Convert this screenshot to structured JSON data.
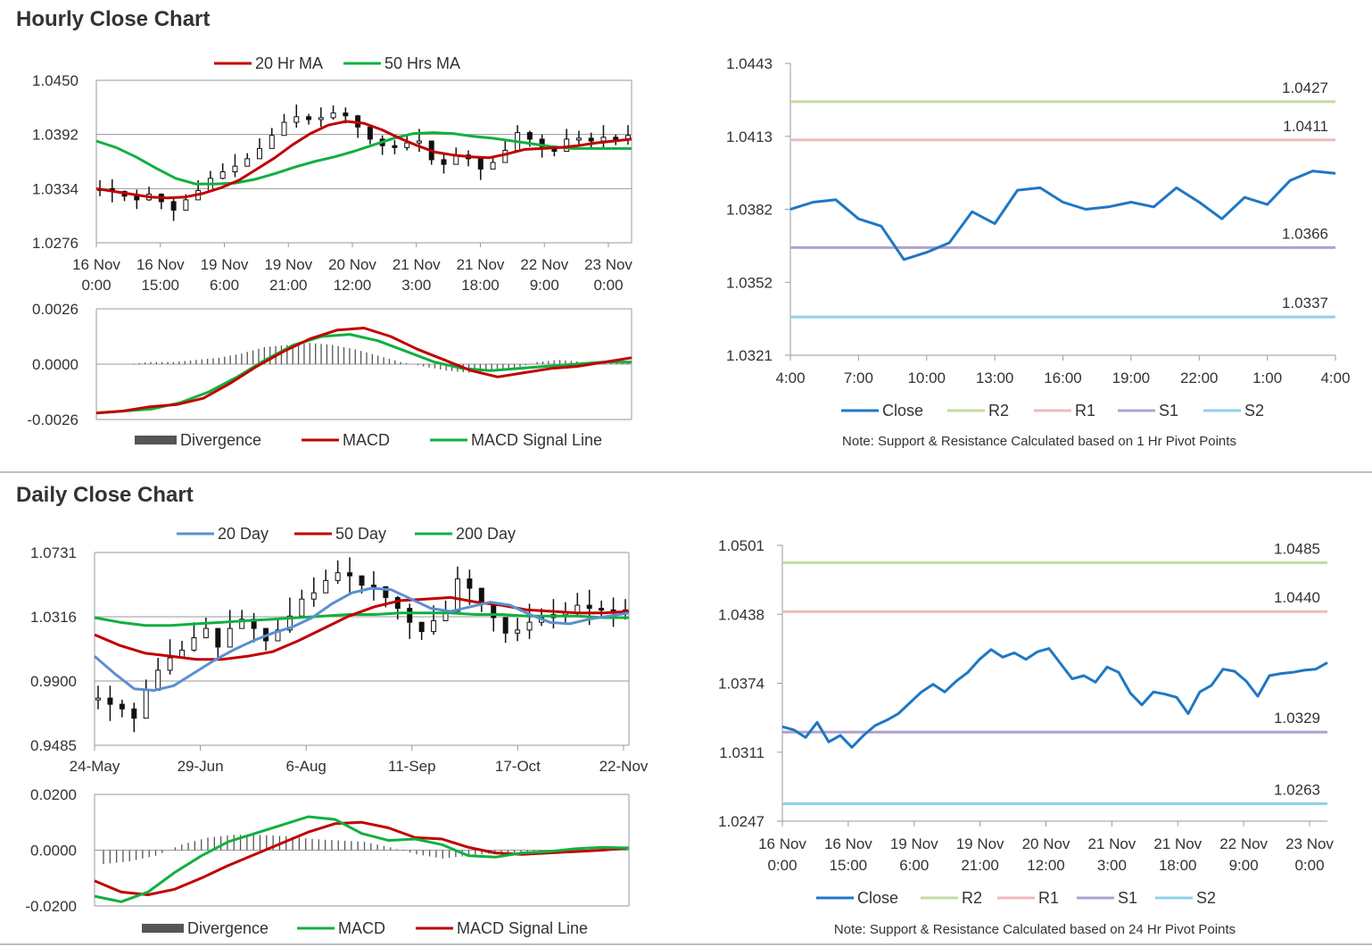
{
  "sections": {
    "hourly_title": "Hourly Close Chart",
    "daily_title": "Daily Close Chart"
  },
  "colors": {
    "red": "#c00000",
    "green": "#10b040",
    "blue": "#1f77c4",
    "mablue": "#5b8fd0",
    "r2": "#c3dca0",
    "r1": "#f2b8bc",
    "s1": "#b0a0d0",
    "s2": "#8fd0e8",
    "candle": "#111111",
    "grid": "#9a9a9a",
    "hist": "#555555"
  },
  "chart_data": [
    {
      "id": "hourly_price",
      "type": "line",
      "legend": [
        "20 Hr MA",
        "50 Hrs MA"
      ],
      "yticks": [
        "1.0450",
        "1.0392",
        "1.0334",
        "1.0276"
      ],
      "ylim": [
        1.0276,
        1.045
      ],
      "xticks": [
        [
          "16 Nov",
          "0:00"
        ],
        [
          "16 Nov",
          "15:00"
        ],
        [
          "19 Nov",
          "6:00"
        ],
        [
          "19 Nov",
          "21:00"
        ],
        [
          "20 Nov",
          "12:00"
        ],
        [
          "21 Nov",
          "3:00"
        ],
        [
          "21 Nov",
          "18:00"
        ],
        [
          "22 Nov",
          "9:00"
        ],
        [
          "23 Nov",
          "0:00"
        ]
      ],
      "price": [
        1.0334,
        1.0331,
        1.0326,
        1.0322,
        1.0328,
        1.032,
        1.0311,
        1.0322,
        1.0332,
        1.0345,
        1.0352,
        1.0358,
        1.0366,
        1.0377,
        1.0391,
        1.0405,
        1.0411,
        1.0408,
        1.041,
        1.0415,
        1.0412,
        1.04,
        1.0387,
        1.038,
        1.0378,
        1.0383,
        1.0385,
        1.0365,
        1.036,
        1.037,
        1.0366,
        1.0355,
        1.0362,
        1.0375,
        1.0394,
        1.0387,
        1.0379,
        1.0374,
        1.0387,
        1.0388,
        1.0385,
        1.0389,
        1.0386,
        1.0391
      ],
      "ma20": [
        1.0334,
        1.0331,
        1.0328,
        1.0325,
        1.0324,
        1.0325,
        1.0329,
        1.0335,
        1.0343,
        1.0355,
        1.0367,
        1.0381,
        1.0393,
        1.0402,
        1.0406,
        1.0404,
        1.0397,
        1.0388,
        1.038,
        1.0373,
        1.037,
        1.0368,
        1.0367,
        1.0371,
        1.0376,
        1.0377,
        1.0378,
        1.038,
        1.0383,
        1.0385,
        1.0387
      ],
      "ma50": [
        1.0385,
        1.0378,
        1.0368,
        1.0356,
        1.0345,
        1.0339,
        1.0339,
        1.034,
        1.0344,
        1.035,
        1.0357,
        1.0363,
        1.0368,
        1.0374,
        1.0381,
        1.0388,
        1.0393,
        1.0394,
        1.0393,
        1.039,
        1.0388,
        1.0385,
        1.0382,
        1.0379,
        1.0377,
        1.0377,
        1.0377,
        1.0377
      ]
    },
    {
      "id": "hourly_macd",
      "type": "line",
      "legend": [
        "Divergence",
        "MACD",
        "MACD Signal Line"
      ],
      "yticks": [
        "0.0026",
        "0.0000",
        "-0.0026"
      ],
      "ylim": [
        -0.0026,
        0.0026
      ],
      "macd": [
        -0.0023,
        -0.0022,
        -0.002,
        -0.0019,
        -0.0016,
        -0.0009,
        -0.0001,
        0.0006,
        0.0012,
        0.0016,
        0.0017,
        0.0013,
        0.0007,
        0.0002,
        -0.0003,
        -0.0006,
        -0.0004,
        -0.0002,
        -0.0001,
        0.0001,
        0.0003
      ],
      "signal": [
        -0.0023,
        -0.0022,
        -0.0021,
        -0.0018,
        -0.0013,
        -0.0006,
        0.0002,
        0.0009,
        0.0013,
        0.0014,
        0.0011,
        0.0006,
        0.0001,
        -0.0002,
        -0.0003,
        -0.0002,
        -0.0001,
        0.0,
        0.0001,
        0.0001
      ],
      "divergence": [
        0.0,
        0.0,
        0.0001,
        0.0001,
        0.0002,
        0.0003,
        0.0005,
        0.0008,
        0.0009,
        0.001,
        0.0009,
        0.0007,
        0.0004,
        0.0001,
        -0.0001,
        -0.0003,
        -0.0004,
        -0.0003,
        -0.0002,
        0.0001,
        0.0002,
        0.0001,
        0.0001,
        0.0001
      ]
    },
    {
      "id": "hourly_sr",
      "type": "line",
      "legend": [
        "Close",
        "R2",
        "R1",
        "S1",
        "S2"
      ],
      "yticks": [
        "1.0443",
        "1.0413",
        "1.0382",
        "1.0352",
        "1.0321"
      ],
      "ylim": [
        1.0321,
        1.0443
      ],
      "xticks": [
        "4:00",
        "7:00",
        "10:00",
        "13:00",
        "16:00",
        "19:00",
        "22:00",
        "1:00",
        "4:00"
      ],
      "levels": {
        "R2": "1.0427",
        "R1": "1.0411",
        "S1": "1.0366",
        "S2": "1.0337"
      },
      "close": [
        1.0382,
        1.0385,
        1.0386,
        1.0378,
        1.0375,
        1.0361,
        1.0364,
        1.0368,
        1.0381,
        1.0376,
        1.039,
        1.0391,
        1.0385,
        1.0382,
        1.0383,
        1.0385,
        1.0383,
        1.0391,
        1.0385,
        1.0378,
        1.0387,
        1.0384,
        1.0394,
        1.0398,
        1.0397
      ],
      "note": "Note: Support & Resistance Calculated based on 1 Hr Pivot Points"
    },
    {
      "id": "daily_price",
      "type": "line",
      "legend": [
        "20 Day",
        "50 Day",
        "200 Day"
      ],
      "yticks": [
        "1.0731",
        "1.0316",
        "0.9900",
        "0.9485"
      ],
      "ylim": [
        0.9485,
        1.0731
      ],
      "xticks": [
        "24-May",
        "29-Jun",
        "6-Aug",
        "11-Sep",
        "17-Oct",
        "22-Nov"
      ],
      "price": [
        0.979,
        0.975,
        0.972,
        0.966,
        0.984,
        0.997,
        1.005,
        1.01,
        1.018,
        1.024,
        1.012,
        1.024,
        1.03,
        1.024,
        1.016,
        1.023,
        1.032,
        1.043,
        1.047,
        1.055,
        1.06,
        1.058,
        1.052,
        1.051,
        1.044,
        1.037,
        1.028,
        1.022,
        1.029,
        1.035,
        1.056,
        1.05,
        1.04,
        1.031,
        1.021,
        1.023,
        1.028,
        1.031,
        1.033,
        1.034,
        1.039,
        1.037,
        1.036,
        1.034,
        1.036
      ],
      "ma20": [
        1.006,
        0.995,
        0.985,
        0.984,
        0.987,
        0.995,
        1.003,
        1.01,
        1.016,
        1.021,
        1.025,
        1.031,
        1.04,
        1.047,
        1.05,
        1.049,
        1.043,
        1.037,
        1.035,
        1.038,
        1.041,
        1.039,
        1.033,
        1.028,
        1.027,
        1.03,
        1.032,
        1.034
      ],
      "ma50": [
        1.02,
        1.013,
        1.008,
        1.006,
        1.004,
        1.004,
        1.006,
        1.009,
        1.016,
        1.024,
        1.032,
        1.038,
        1.042,
        1.043,
        1.044,
        1.041,
        1.039,
        1.036,
        1.035,
        1.034,
        1.034,
        1.035
      ],
      "ma200": [
        1.031,
        1.028,
        1.026,
        1.026,
        1.027,
        1.028,
        1.029,
        1.03,
        1.031,
        1.032,
        1.033,
        1.033,
        1.034,
        1.034,
        1.034,
        1.033,
        1.033,
        1.032,
        1.032,
        1.032,
        1.031,
        1.031
      ]
    },
    {
      "id": "daily_macd",
      "type": "line",
      "legend": [
        "Divergence",
        "MACD",
        "MACD Signal Line"
      ],
      "yticks": [
        "0.0200",
        "0.0000",
        "-0.0200"
      ],
      "ylim": [
        -0.02,
        0.02
      ],
      "macd": [
        -0.0165,
        -0.0185,
        -0.015,
        -0.008,
        -0.002,
        0.003,
        0.006,
        0.009,
        0.012,
        0.011,
        0.006,
        0.0035,
        0.004,
        0.002,
        -0.002,
        -0.0025,
        -0.001,
        -0.0005,
        0.0005,
        0.001,
        0.0008
      ],
      "signal": [
        -0.011,
        -0.015,
        -0.016,
        -0.014,
        -0.01,
        -0.0055,
        -0.0015,
        0.0025,
        0.0065,
        0.0095,
        0.01,
        0.008,
        0.0045,
        0.004,
        0.001,
        -0.001,
        -0.0015,
        -0.001,
        -0.0005,
        0.0,
        0.0008
      ],
      "divergence": [
        -0.005,
        -0.004,
        -0.002,
        0.002,
        0.0045,
        0.0055,
        0.0055,
        0.005,
        0.004,
        0.0035,
        0.003,
        0.001,
        -0.0015,
        -0.003,
        -0.002,
        -0.001,
        -0.0008,
        -0.0005,
        -0.0002,
        0.0002,
        0.0004
      ]
    },
    {
      "id": "daily_sr",
      "type": "line",
      "legend": [
        "Close",
        "R2",
        "R1",
        "S1",
        "S2"
      ],
      "yticks": [
        "1.0501",
        "1.0438",
        "1.0374",
        "1.0311",
        "1.0247"
      ],
      "ylim": [
        1.0247,
        1.0501
      ],
      "xticks": [
        [
          "16 Nov",
          "0:00"
        ],
        [
          "16 Nov",
          "15:00"
        ],
        [
          "19 Nov",
          "6:00"
        ],
        [
          "19 Nov",
          "21:00"
        ],
        [
          "20 Nov",
          "12:00"
        ],
        [
          "21 Nov",
          "3:00"
        ],
        [
          "21 Nov",
          "18:00"
        ],
        [
          "22 Nov",
          "9:00"
        ],
        [
          "23 Nov",
          "0:00"
        ]
      ],
      "levels": {
        "R2": "1.0485",
        "R1": "1.0440",
        "S1": "1.0329",
        "S2": "1.0263"
      },
      "close": [
        1.0334,
        1.0331,
        1.0324,
        1.0338,
        1.032,
        1.0326,
        1.0315,
        1.0326,
        1.0335,
        1.034,
        1.0346,
        1.0356,
        1.0366,
        1.0373,
        1.0366,
        1.0376,
        1.0384,
        1.0396,
        1.0405,
        1.0398,
        1.0402,
        1.0396,
        1.0403,
        1.0406,
        1.0392,
        1.0378,
        1.0381,
        1.0375,
        1.0389,
        1.0384,
        1.0365,
        1.0354,
        1.0366,
        1.0364,
        1.0361,
        1.0346,
        1.0366,
        1.0372,
        1.0387,
        1.0385,
        1.0376,
        1.0362,
        1.0381,
        1.0383,
        1.0384,
        1.0386,
        1.0387,
        1.0393
      ],
      "note": "Note: Support & Resistance Calculated based on 24 Hr Pivot Points"
    }
  ]
}
